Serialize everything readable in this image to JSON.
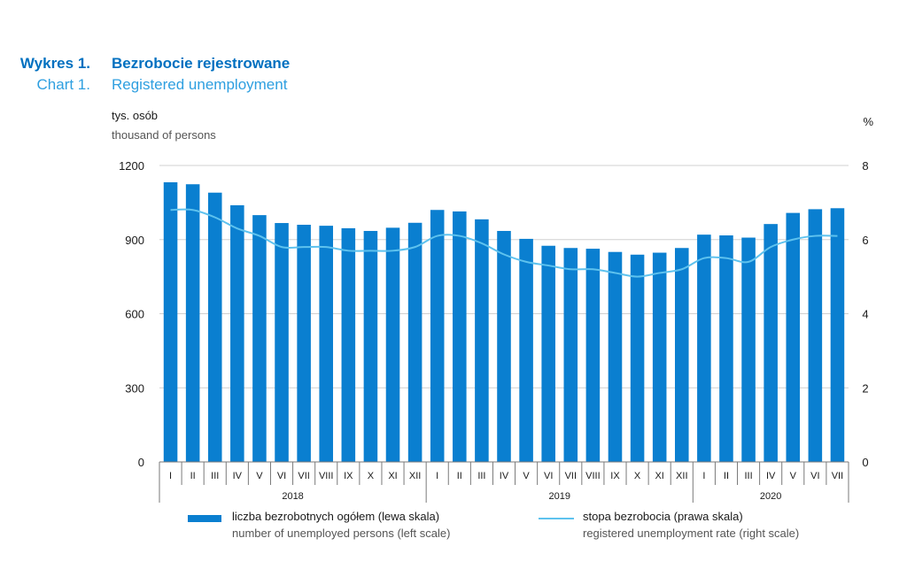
{
  "title": {
    "pl_label": "Wykres 1.",
    "pl_text": "Bezrobocie rejestrowane",
    "en_label": "Chart 1.",
    "en_text": "Registered unemployment"
  },
  "axes": {
    "left_unit_pl": "tys. osób",
    "left_unit_en": "thousand of persons",
    "right_unit": "%"
  },
  "legend": {
    "bars_pl": "liczba bezrobotnych ogółem (lewa skala)",
    "bars_en": "number of unemployed persons (left scale)",
    "line_pl": "stopa bezrobocia (prawa skala)",
    "line_en": "registered unemployment rate (right scale)"
  },
  "chart_data": {
    "type": "bar",
    "categories": [
      "I",
      "II",
      "III",
      "IV",
      "V",
      "VI",
      "VII",
      "VIII",
      "IX",
      "X",
      "XI",
      "XII",
      "I",
      "II",
      "III",
      "IV",
      "V",
      "VI",
      "VII",
      "VIII",
      "IX",
      "X",
      "XI",
      "XII",
      "I",
      "II",
      "III",
      "IV",
      "V",
      "VI",
      "VII"
    ],
    "years": [
      {
        "label": "2018",
        "start": 0,
        "count": 12
      },
      {
        "label": "2019",
        "start": 12,
        "count": 12
      },
      {
        "label": "2020",
        "start": 24,
        "count": 7
      }
    ],
    "series": [
      {
        "name": "liczba bezrobotnych ogółem (lewa skala)",
        "type": "bar",
        "axis": "left",
        "color": "#0a7fd0",
        "values": [
          1132,
          1124,
          1090,
          1039,
          999,
          967,
          960,
          956,
          946,
          935,
          948,
          968,
          1020,
          1014,
          982,
          935,
          903,
          875,
          866,
          863,
          850,
          839,
          847,
          866,
          920,
          917,
          908,
          963,
          1008,
          1023,
          1027
        ]
      },
      {
        "name": "stopa bezrobocia (prawa skala)",
        "type": "line",
        "axis": "right",
        "color": "#5ec2ee",
        "values": [
          6.8,
          6.8,
          6.6,
          6.3,
          6.1,
          5.8,
          5.8,
          5.8,
          5.7,
          5.7,
          5.7,
          5.8,
          6.1,
          6.1,
          5.9,
          5.6,
          5.4,
          5.3,
          5.2,
          5.2,
          5.1,
          5.0,
          5.1,
          5.2,
          5.5,
          5.5,
          5.4,
          5.8,
          6.0,
          6.1,
          6.1
        ]
      }
    ],
    "ylim_left": [
      0,
      1200
    ],
    "yticks_left": [
      0,
      300,
      600,
      900,
      1200
    ],
    "ylim_right": [
      0,
      8
    ],
    "yticks_right": [
      0,
      2,
      4,
      6,
      8
    ],
    "grid": "horizontal",
    "legend_position": "bottom"
  }
}
